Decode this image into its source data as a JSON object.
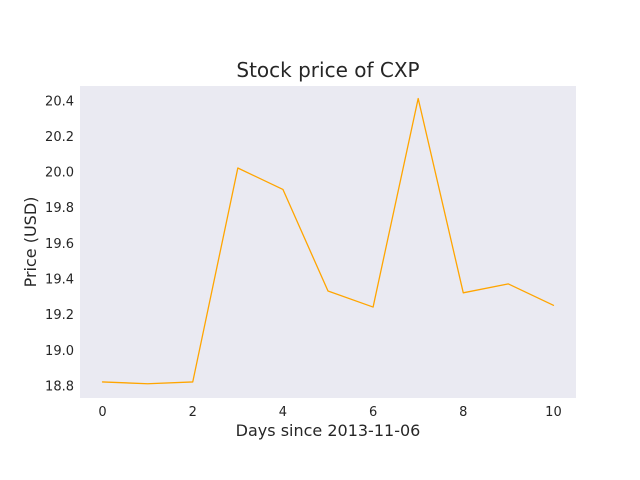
{
  "chart_data": {
    "type": "line",
    "title": "Stock price of CXP",
    "xlabel": "Days since 2013-11-06",
    "ylabel": "Price (USD)",
    "x": [
      0,
      1,
      2,
      3,
      4,
      5,
      6,
      7,
      8,
      9,
      10
    ],
    "series": [
      {
        "values": [
          18.82,
          18.81,
          18.82,
          20.02,
          19.9,
          19.33,
          19.24,
          20.41,
          19.32,
          19.37,
          19.25
        ],
        "color": "#ffa500"
      }
    ],
    "xlim": [
      -0.5,
      10.5
    ],
    "ylim": [
      18.73,
      20.48
    ],
    "xticks": [
      0,
      2,
      4,
      6,
      8,
      10
    ],
    "xtick_labels": [
      "0",
      "2",
      "4",
      "6",
      "8",
      "10"
    ],
    "yticks": [
      18.8,
      19.0,
      19.2,
      19.4,
      19.6,
      19.8,
      20.0,
      20.2,
      20.4
    ],
    "ytick_labels": [
      "18.8",
      "19.0",
      "19.2",
      "19.4",
      "19.6",
      "19.8",
      "20.0",
      "20.2",
      "20.4"
    ],
    "grid": false,
    "background_color": "#eaeaf2"
  }
}
